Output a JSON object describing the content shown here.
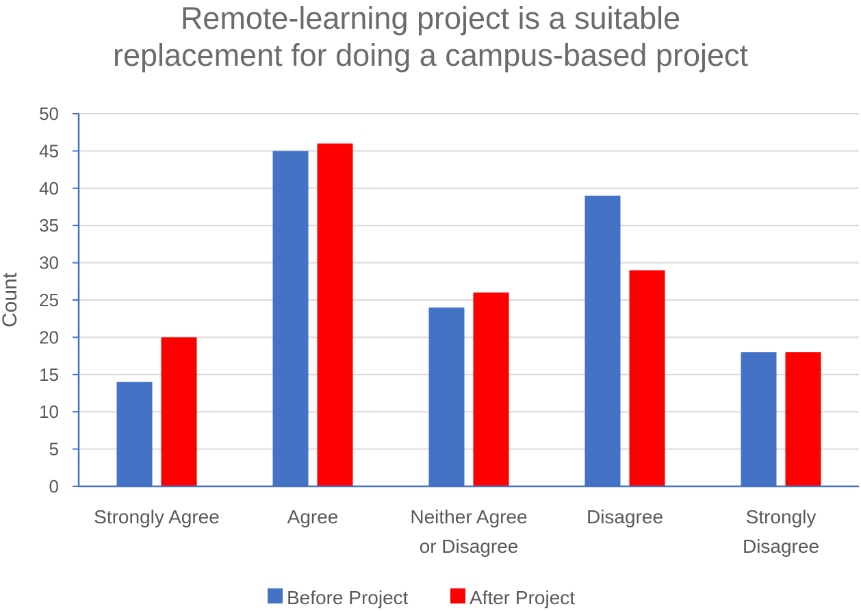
{
  "chart_data": {
    "type": "bar",
    "title_lines": [
      "Remote-learning project is a suitable",
      "replacement for doing a campus-based project"
    ],
    "ylabel": "Count",
    "xlabel": "",
    "ylim": [
      0,
      50
    ],
    "yticks": [
      0,
      5,
      10,
      15,
      20,
      25,
      30,
      35,
      40,
      45,
      50
    ],
    "grid": true,
    "categories": [
      [
        "Strongly Agree"
      ],
      [
        "Agree"
      ],
      [
        "Neither Agree",
        "or Disagree"
      ],
      [
        "Disagree"
      ],
      [
        "Strongly",
        "Disagree"
      ]
    ],
    "series": [
      {
        "name": "Before Project",
        "color": "#4472C4",
        "values": [
          14,
          45,
          24,
          39,
          18
        ]
      },
      {
        "name": "After Project",
        "color": "#FF0000",
        "values": [
          20,
          46,
          26,
          29,
          18
        ]
      }
    ],
    "legend_position": "bottom"
  }
}
